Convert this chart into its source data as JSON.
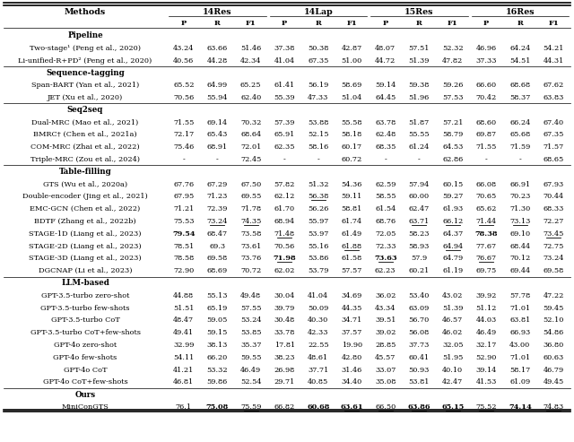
{
  "dataset_headers": [
    "14Res",
    "14Lap",
    "15Res",
    "16Res"
  ],
  "sections": [
    {
      "name": "Pipeline",
      "is_header": true
    },
    {
      "name": "Two-stage¹ (Peng et al., 2020)",
      "is_header": false,
      "vals": [
        "43.24",
        "63.66",
        "51.46",
        "37.38",
        "50.38",
        "42.87",
        "48.07",
        "57.51",
        "52.32",
        "46.96",
        "64.24",
        "54.21"
      ]
    },
    {
      "name": "Li-unified-R+PD² (Peng et al., 2020)",
      "is_header": false,
      "vals": [
        "40.56",
        "44.28",
        "42.34",
        "41.04",
        "67.35",
        "51.00",
        "44.72",
        "51.39",
        "47.82",
        "37.33",
        "54.51",
        "44.31"
      ]
    },
    {
      "name": "Sequence-tagging",
      "is_header": true
    },
    {
      "name": "Span-BART (Yan et al., 2021)",
      "is_header": false,
      "vals": [
        "65.52",
        "64.99",
        "65.25",
        "61.41",
        "56.19",
        "58.69",
        "59.14",
        "59.38",
        "59.26",
        "66.60",
        "68.68",
        "67.62"
      ]
    },
    {
      "name": "JET (Xu et al., 2020)",
      "is_header": false,
      "vals": [
        "70.56",
        "55.94",
        "62.40",
        "55.39",
        "47.33",
        "51.04",
        "64.45",
        "51.96",
        "57.53",
        "70.42",
        "58.37",
        "63.83"
      ]
    },
    {
      "name": "Seq2seq",
      "is_header": true
    },
    {
      "name": "Dual-MRC (Mao et al., 2021)",
      "is_header": false,
      "vals": [
        "71.55",
        "69.14",
        "70.32",
        "57.39",
        "53.88",
        "55.58",
        "63.78",
        "51.87",
        "57.21",
        "68.60",
        "66.24",
        "67.40"
      ]
    },
    {
      "name": "BMRC† (Chen et al., 2021a)",
      "is_header": false,
      "vals": [
        "72.17",
        "65.43",
        "68.64",
        "65.91",
        "52.15",
        "58.18",
        "62.48",
        "55.55",
        "58.79",
        "69.87",
        "65.68",
        "67.35"
      ]
    },
    {
      "name": "COM-MRC (Zhai et al., 2022)",
      "is_header": false,
      "vals": [
        "75.46",
        "68.91",
        "72.01",
        "62.35",
        "58.16",
        "60.17",
        "68.35",
        "61.24",
        "64.53",
        "71.55",
        "71.59",
        "71.57"
      ]
    },
    {
      "name": "Triple-MRC (Zou et al., 2024)",
      "is_header": false,
      "vals": [
        "-",
        "-",
        "72.45",
        "-",
        "-",
        "60.72",
        "-",
        "-",
        "62.86",
        "-",
        "-",
        "68.65"
      ]
    },
    {
      "name": "Table-filling",
      "is_header": true
    },
    {
      "name": "GTS (Wu et al., 2020a)",
      "is_header": false,
      "vals": [
        "67.76",
        "67.29",
        "67.50",
        "57.82",
        "51.32",
        "54.36",
        "62.59",
        "57.94",
        "60.15",
        "66.08",
        "66.91",
        "67.93"
      ]
    },
    {
      "name": "Double-encoder (Jing et al., 2021)",
      "is_header": false,
      "vals": [
        "67.95",
        "71.23",
        "69.55",
        "62.12",
        "56.38",
        "59.11",
        "58.55",
        "60.00",
        "59.27",
        "70.65",
        "70.23",
        "70.44"
      ]
    },
    {
      "name": "EMC-GCN (Chen et al., 2022)",
      "is_header": false,
      "vals": [
        "71.21",
        "72.39",
        "71.78",
        "61.70",
        "56.26",
        "58.81",
        "61.54",
        "62.47",
        "61.93",
        "65.62",
        "71.30",
        "68.33"
      ]
    },
    {
      "name": "BDTF (Zhang et al., 2022b)",
      "is_header": false,
      "vals": [
        "75.53",
        "73.24",
        "74.35",
        "68.94",
        "55.97",
        "61.74",
        "68.76",
        "63.71",
        "66.12",
        "71.44",
        "73.13",
        "72.27"
      ]
    },
    {
      "name": "STAGE-1D (Liang et al., 2023)",
      "is_header": false,
      "vals": [
        "79.54",
        "68.47",
        "73.58",
        "71.48",
        "53.97",
        "61.49",
        "72.05",
        "58.23",
        "64.37",
        "78.38",
        "69.10",
        "73.45"
      ]
    },
    {
      "name": "STAGE-2D (Liang et al., 2023)",
      "is_header": false,
      "vals": [
        "78.51",
        "69.3",
        "73.61",
        "70.56",
        "55.16",
        "61.88",
        "72.33",
        "58.93",
        "64.94",
        "77.67",
        "68.44",
        "72.75"
      ]
    },
    {
      "name": "STAGE-3D (Liang et al., 2023)",
      "is_header": false,
      "vals": [
        "78.58",
        "69.58",
        "73.76",
        "71.98",
        "53.86",
        "61.58",
        "73.63",
        "57.9",
        "64.79",
        "76.67",
        "70.12",
        "73.24"
      ]
    },
    {
      "name": "DGCNAP (Li et al., 2023)",
      "is_header": false,
      "vals": [
        "72.90",
        "68.69",
        "70.72",
        "62.02",
        "53.79",
        "57.57",
        "62.23",
        "60.21",
        "61.19",
        "69.75",
        "69.44",
        "69.58"
      ]
    },
    {
      "name": "LLM-based",
      "is_header": true
    },
    {
      "name": "GPT-3.5-turbo zero-shot",
      "is_header": false,
      "vals": [
        "44.88",
        "55.13",
        "49.48",
        "30.04",
        "41.04",
        "34.69",
        "36.02",
        "53.40",
        "43.02",
        "39.92",
        "57.78",
        "47.22"
      ]
    },
    {
      "name": "GPT-3.5-turbo few-shots",
      "is_header": false,
      "vals": [
        "51.51",
        "65.19",
        "57.55",
        "39.79",
        "50.09",
        "44.35",
        "43.34",
        "63.09",
        "51.39",
        "51.12",
        "71.01",
        "59.45"
      ]
    },
    {
      "name": "GPT-3.5-turbo CoT",
      "is_header": false,
      "vals": [
        "48.47",
        "59.05",
        "53.24",
        "30.48",
        "40.30",
        "34.71",
        "39.51",
        "56.70",
        "46.57",
        "44.03",
        "63.81",
        "52.10"
      ]
    },
    {
      "name": "GPT-3.5-turbo CoT+few-shots",
      "is_header": false,
      "vals": [
        "49.41",
        "59.15",
        "53.85",
        "33.78",
        "42.33",
        "37.57",
        "39.02",
        "56.08",
        "46.02",
        "46.49",
        "66.93",
        "54.86"
      ]
    },
    {
      "name": "GPT-4o zero-shot",
      "is_header": false,
      "vals": [
        "32.99",
        "38.13",
        "35.37",
        "17.81",
        "22.55",
        "19.90",
        "28.85",
        "37.73",
        "32.05",
        "32.17",
        "43.00",
        "36.80"
      ]
    },
    {
      "name": "GPT-4o few-shots",
      "is_header": false,
      "vals": [
        "54.11",
        "66.20",
        "59.55",
        "38.23",
        "48.61",
        "42.80",
        "45.57",
        "60.41",
        "51.95",
        "52.90",
        "71.01",
        "60.63"
      ]
    },
    {
      "name": "GPT-4o CoT",
      "is_header": false,
      "vals": [
        "41.21",
        "53.32",
        "46.49",
        "26.98",
        "37.71",
        "31.46",
        "33.07",
        "50.93",
        "40.10",
        "39.14",
        "58.17",
        "46.79"
      ]
    },
    {
      "name": "GPT-4o CoT+few-shots",
      "is_header": false,
      "vals": [
        "46.81",
        "59.86",
        "52.54",
        "29.71",
        "40.85",
        "34.40",
        "35.08",
        "53.81",
        "42.47",
        "41.53",
        "61.09",
        "49.45"
      ]
    },
    {
      "name": "Ours",
      "is_header": true
    },
    {
      "name": "MiniConGTS",
      "is_header": false,
      "vals": [
        "76.1",
        "75.08",
        "75.59",
        "66.82",
        "60.68",
        "63.61",
        "66.50",
        "63.86",
        "65.15",
        "75.52",
        "74.14",
        "74.83"
      ]
    }
  ],
  "bold_map": {
    "STAGE-1D (Liang et al., 2023)": [
      0,
      9
    ],
    "STAGE-3D (Liang et al., 2023)": [
      3,
      6
    ],
    "MiniConGTS": [
      1,
      4,
      5,
      7,
      8,
      10
    ]
  },
  "underline_map": {
    "Double-encoder (Jing et al., 2021)": [
      4
    ],
    "BDTF (Zhang et al., 2022b)": [
      1,
      2,
      7,
      8,
      9,
      10
    ],
    "STAGE-1D (Liang et al., 2023)": [
      3,
      11
    ],
    "STAGE-2D (Liang et al., 2023)": [
      5,
      8
    ],
    "STAGE-3D (Liang et al., 2023)": [
      3,
      6,
      9
    ],
    "MiniConGTS": [
      2,
      5,
      6,
      7,
      8,
      9,
      11
    ]
  },
  "bg_color": "#ffffff",
  "text_color_method": "#000080",
  "text_color_black": "#000000"
}
